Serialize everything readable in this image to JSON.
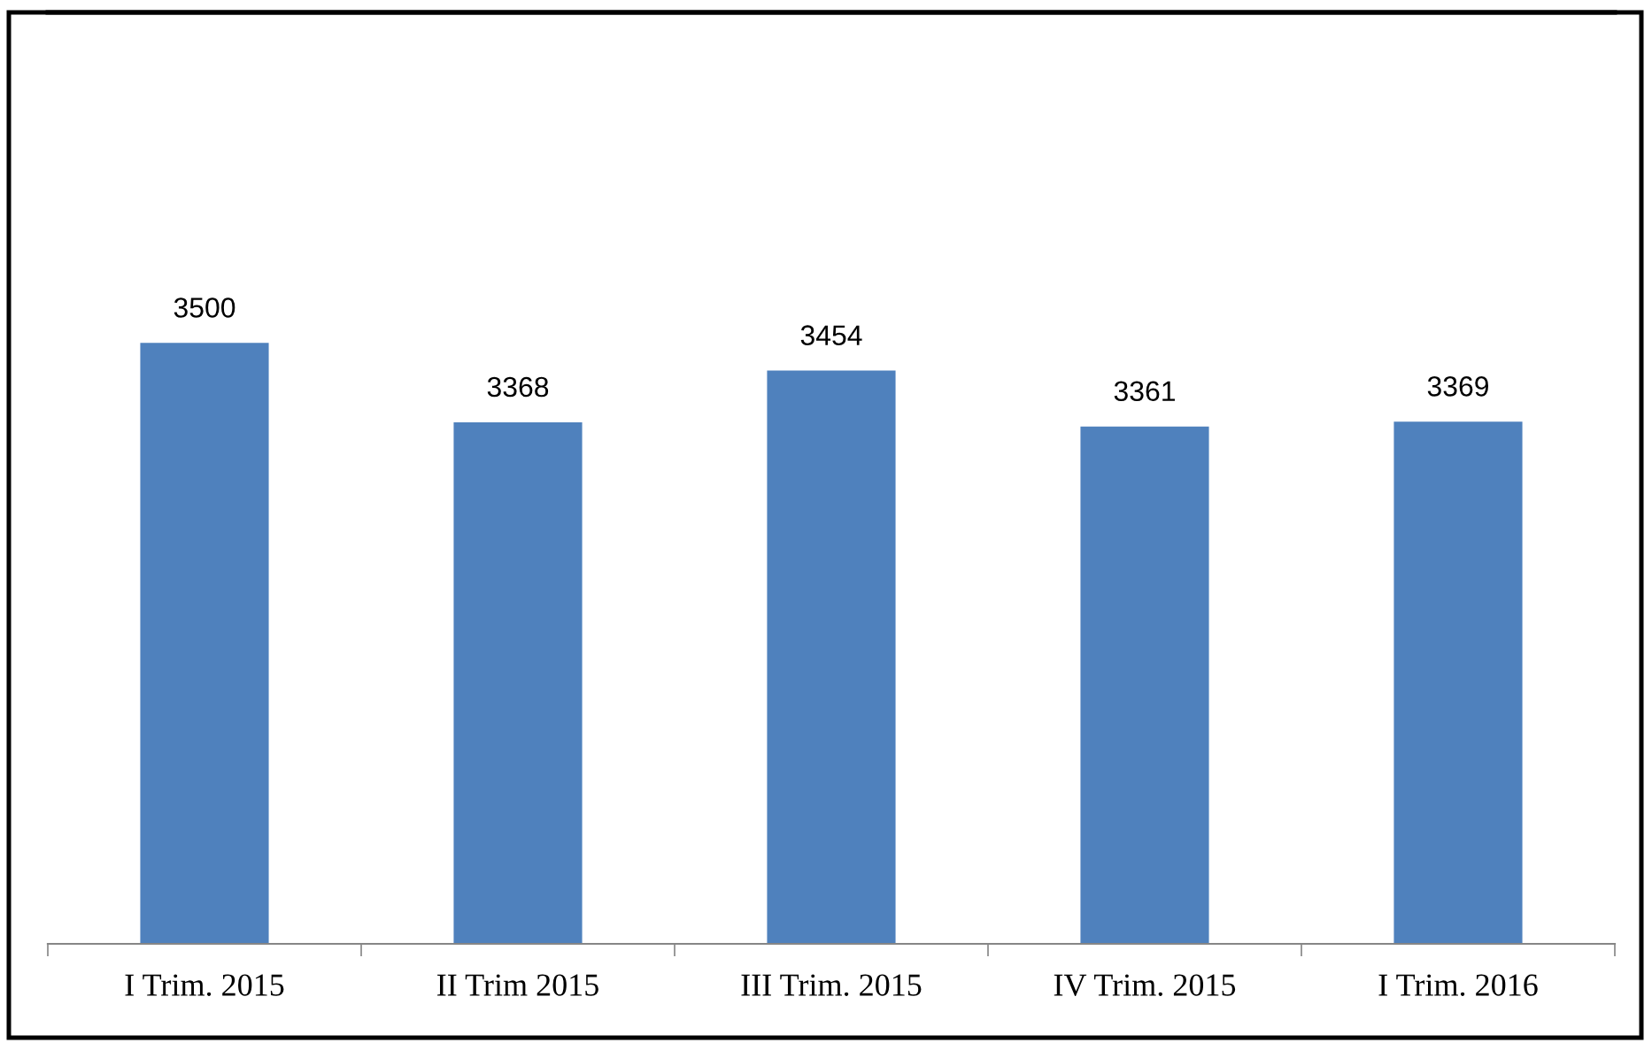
{
  "chart_data": {
    "type": "bar",
    "categories": [
      "I Trim. 2015",
      "II Trim 2015",
      "III Trim. 2015",
      "IV Trim. 2015",
      "I Trim. 2016"
    ],
    "values": [
      3500,
      3368,
      3454,
      3361,
      3369
    ],
    "color": "#4f81bd",
    "ylim": [
      2500,
      4050
    ],
    "data_labels": true,
    "tick_labels": "x"
  }
}
